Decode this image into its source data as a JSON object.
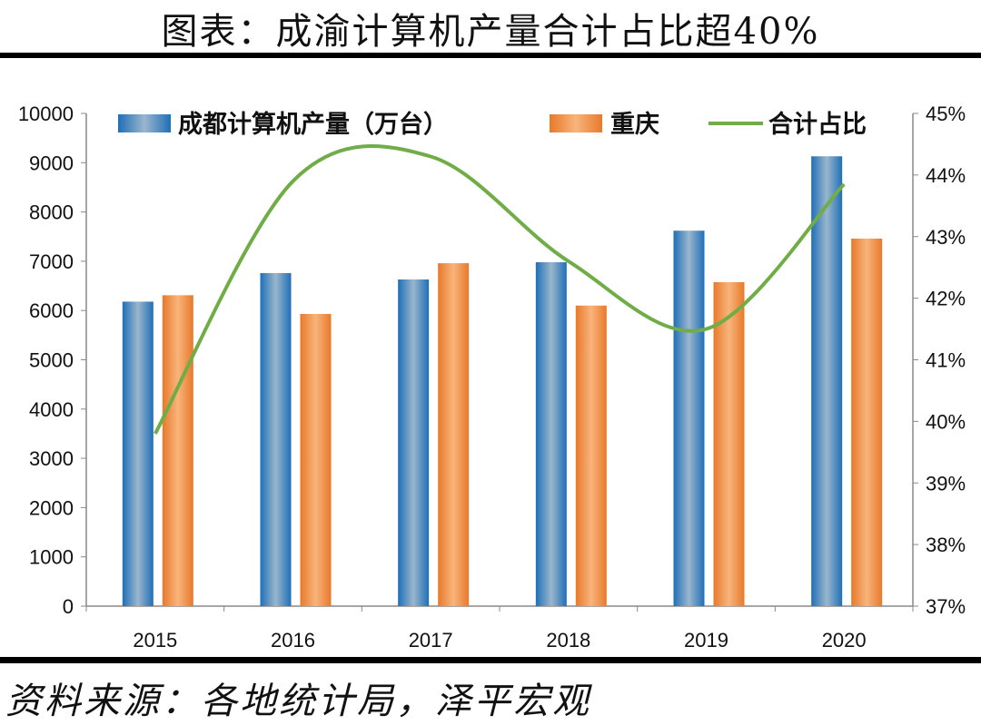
{
  "header": {
    "title": "图表：成渝计算机产量合计占比超40%"
  },
  "footer": {
    "source": "资料来源：各地统计局，泽平宏观"
  },
  "chart_data": {
    "type": "bar+line",
    "categories": [
      "2015",
      "2016",
      "2017",
      "2018",
      "2019",
      "2020"
    ],
    "series": [
      {
        "name": "成都计算机产量（万台）",
        "type": "bar",
        "axis": "left",
        "color": "#2E75B6",
        "values": [
          6180,
          6760,
          6630,
          6980,
          7620,
          9130
        ]
      },
      {
        "name": "重庆",
        "type": "bar",
        "axis": "left",
        "color": "#ED7D31",
        "values": [
          6310,
          5930,
          6960,
          6100,
          6575,
          7460
        ]
      },
      {
        "name": "合计占比",
        "type": "line",
        "axis": "right",
        "color": "#70AD47",
        "smooth": true,
        "values": [
          39.8,
          43.9,
          44.3,
          42.6,
          41.5,
          43.85
        ]
      }
    ],
    "left_axis": {
      "range": [
        0,
        10000
      ],
      "ticks": [
        "0",
        "1000",
        "2000",
        "3000",
        "4000",
        "5000",
        "6000",
        "7000",
        "8000",
        "9000",
        "10000"
      ]
    },
    "right_axis": {
      "range": [
        37,
        45
      ],
      "unit": "%",
      "ticks": [
        "37%",
        "38%",
        "39%",
        "40%",
        "41%",
        "42%",
        "43%",
        "44%",
        "45%"
      ]
    },
    "legend": "top",
    "grid": false
  }
}
